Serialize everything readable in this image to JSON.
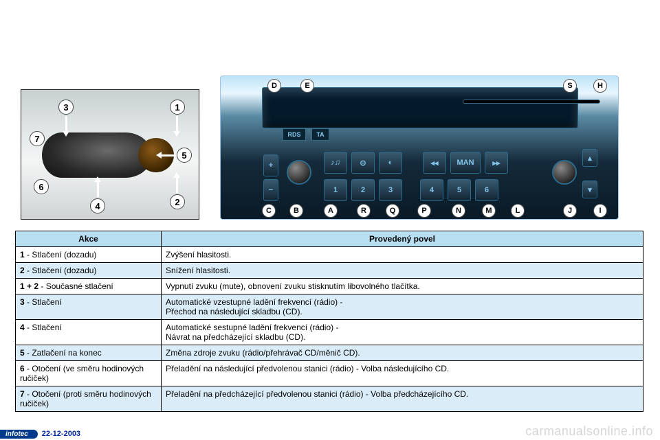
{
  "table": {
    "headers": {
      "action": "Akce",
      "result": "Provedený povel"
    },
    "rows": [
      {
        "num": "1",
        "action": " - Stlačení (dozadu)",
        "result1": "Zvýšení hlasitosti.",
        "result2": ""
      },
      {
        "num": "2",
        "action": " - Stlačení (dozadu)",
        "result1": "Snížení hlasitosti.",
        "result2": ""
      },
      {
        "num": "1 + 2",
        "action": " - Současné stlačení",
        "result1": "Vypnutí zvuku (mute), obnovení zvuku stisknutím libovolného tlačítka.",
        "result2": ""
      },
      {
        "num": "3",
        "action": " - Stlačení",
        "result1": "Automatické vzestupné ladění frekvencí (rádio) -",
        "result2": "Přechod na následující skladbu (CD)."
      },
      {
        "num": "4",
        "action": " - Stlačení",
        "result1": "Automatické sestupné ladění frekvencí (rádio) -",
        "result2": "Návrat na předcházející skladbu (CD)."
      },
      {
        "num": "5",
        "action": " - Zatlačení na konec",
        "result1": "Změna zdroje zvuku (rádio/přehrávač CD/měnič CD).",
        "result2": ""
      },
      {
        "num": "6",
        "action": " - Otočení (ve směru hodinových ručiček)",
        "result1": "Přeladění na následující předvolenou stanici (rádio) - Volba následujícího CD.",
        "result2": ""
      },
      {
        "num": "7",
        "action": " - Otočení (proti směru hodinových ručiček)",
        "result1": "Přeladění na předcházející předvolenou stanici (rádio) - Volba předcházejícího CD.",
        "result2": ""
      }
    ]
  },
  "stalk_labels": {
    "1": "1",
    "2": "2",
    "3": "3",
    "4": "4",
    "5": "5",
    "6": "6",
    "7": "7"
  },
  "radio": {
    "rds": "RDS",
    "ta": "TA",
    "btn_man": "MAN",
    "presets": {
      "1": "1",
      "2": "2",
      "3": "3",
      "4": "4",
      "5": "5",
      "6": "6"
    },
    "labels": {
      "A": "A",
      "B": "B",
      "C": "C",
      "D": "D",
      "E": "E",
      "H": "H",
      "I": "I",
      "J": "J",
      "L": "L",
      "M": "M",
      "N": "N",
      "P": "P",
      "Q": "Q",
      "R": "R",
      "S": "S"
    },
    "colors": {
      "panel_top": "#bfe3f7",
      "panel_bot": "#0a1a26",
      "accent": "#2c6a8e",
      "text": "#84c6ec"
    }
  },
  "footer": {
    "brand": "infotec",
    "date": "22-12-2003",
    "watermark": "carmanualsonline.info"
  }
}
